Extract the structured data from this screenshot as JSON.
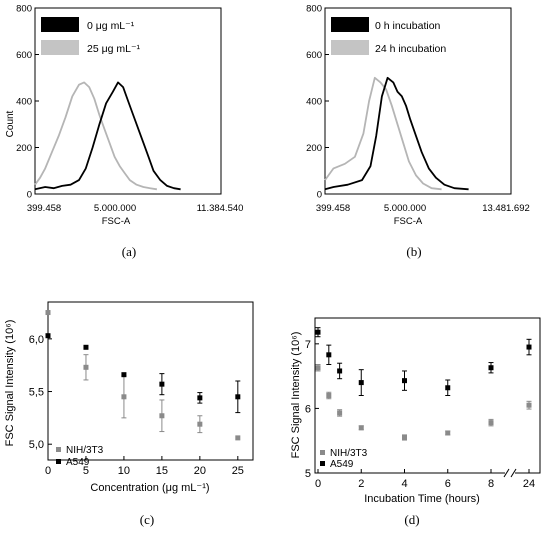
{
  "chart_data": [
    {
      "id": "a",
      "panel_label": "(a)",
      "type": "line",
      "xlabel": "FSC-A",
      "ylabel": "Count",
      "x_tick_labels": [
        "399.458",
        "5.000.000",
        "11.384.540"
      ],
      "xlim": [
        399458,
        11384540
      ],
      "ylim": [
        0,
        800
      ],
      "y_ticks": [
        0,
        200,
        400,
        600,
        800
      ],
      "legend_position": "top-left",
      "series": [
        {
          "name": "0 μg mL⁻¹",
          "color": "#000000",
          "x": [
            399458,
            1000000,
            1500000,
            2000000,
            2500000,
            3000000,
            3400000,
            3800000,
            4200000,
            4600000,
            5000000,
            5300000,
            5600000,
            5900000,
            6200000,
            6500000,
            6800000,
            7100000,
            7400000,
            7800000,
            8200000,
            8600000,
            9000000
          ],
          "y": [
            20,
            30,
            25,
            35,
            40,
            60,
            110,
            200,
            300,
            390,
            440,
            480,
            460,
            400,
            340,
            280,
            220,
            160,
            100,
            60,
            35,
            25,
            20
          ]
        },
        {
          "name": "25 μg mL⁻¹",
          "color": "#b5b5b5",
          "x": [
            399458,
            700000,
            1000000,
            1400000,
            1800000,
            2200000,
            2600000,
            3000000,
            3300000,
            3600000,
            3900000,
            4200000,
            4500000,
            4800000,
            5100000,
            5400000,
            5700000,
            6000000,
            6400000,
            6800000,
            7200000,
            7600000
          ],
          "y": [
            40,
            70,
            110,
            180,
            250,
            330,
            420,
            470,
            480,
            460,
            410,
            340,
            280,
            220,
            160,
            120,
            90,
            60,
            40,
            30,
            25,
            20
          ]
        }
      ]
    },
    {
      "id": "b",
      "panel_label": "(b)",
      "type": "line",
      "xlabel": "FSC-A",
      "ylabel": "",
      "x_tick_labels": [
        "399.458",
        "5.000.000",
        "13.481.692"
      ],
      "xlim": [
        399458,
        13481692
      ],
      "ylim": [
        0,
        800
      ],
      "y_ticks": [
        0,
        200,
        400,
        600,
        800
      ],
      "legend_position": "top-left",
      "series": [
        {
          "name": "0 h incubation",
          "color": "#000000",
          "x": [
            399458,
            1000000,
            2000000,
            3000000,
            3600000,
            4000000,
            4400000,
            4800000,
            5200000,
            5500000,
            5800000,
            6100000,
            6400000,
            6800000,
            7200000,
            7700000,
            8200000,
            8800000,
            9500000,
            10500000
          ],
          "y": [
            20,
            30,
            40,
            60,
            120,
            250,
            420,
            500,
            480,
            440,
            420,
            380,
            320,
            250,
            180,
            110,
            70,
            40,
            25,
            20
          ]
        },
        {
          "name": "24 h incubation",
          "color": "#b5b5b5",
          "x": [
            399458,
            1000000,
            1800000,
            2500000,
            3100000,
            3500000,
            3900000,
            4300000,
            4700000,
            5100000,
            5500000,
            5900000,
            6300000,
            6800000,
            7300000,
            7900000,
            8600000
          ],
          "y": [
            60,
            110,
            130,
            160,
            260,
            400,
            500,
            480,
            450,
            380,
            300,
            220,
            140,
            80,
            45,
            25,
            20
          ]
        }
      ]
    },
    {
      "id": "c",
      "panel_label": "(c)",
      "type": "scatter",
      "xlabel": "Concentration (μg mL⁻¹)",
      "ylabel": "FSC Signal Intensity (10⁶)",
      "xlim": [
        0,
        27
      ],
      "ylim": [
        4.85,
        6.35
      ],
      "x_ticks": [
        0,
        5,
        10,
        15,
        20,
        25
      ],
      "y_ticks": [
        5.0,
        5.5,
        6.0
      ],
      "y_tick_labels": [
        "5,0",
        "5,5",
        "6,0"
      ],
      "legend_position": "bottom-left",
      "series": [
        {
          "name": "NIH/3T3",
          "color": "#8a8a8a",
          "x": [
            0,
            5,
            10,
            15,
            20,
            25
          ],
          "y": [
            6.25,
            5.73,
            5.45,
            5.27,
            5.19,
            5.06
          ],
          "error": [
            0.0,
            0.12,
            0.2,
            0.15,
            0.08,
            0.0
          ]
        },
        {
          "name": "A549",
          "color": "#000000",
          "x": [
            0,
            5,
            10,
            15,
            20,
            25
          ],
          "y": [
            6.03,
            5.92,
            5.66,
            5.57,
            5.44,
            5.45
          ],
          "error": [
            0.0,
            0.0,
            0.0,
            0.1,
            0.05,
            0.15
          ]
        }
      ]
    },
    {
      "id": "d",
      "panel_label": "(d)",
      "type": "scatter",
      "xlabel": "Incubation Time (hours)",
      "ylabel": "FSC Signal Intensity (10⁶)",
      "x_axis_break": true,
      "x_ticks": [
        0,
        2,
        4,
        6,
        8,
        24
      ],
      "y_ticks": [
        5,
        6,
        7
      ],
      "ylim": [
        5,
        7.4
      ],
      "legend_position": "bottom-left",
      "series": [
        {
          "name": "NIH/3T3",
          "color": "#8a8a8a",
          "x": [
            0,
            0.5,
            1,
            2,
            4,
            6,
            8,
            24
          ],
          "y": [
            6.63,
            6.2,
            5.93,
            5.7,
            5.55,
            5.62,
            5.78,
            6.05
          ],
          "error": [
            0.05,
            0.05,
            0.05,
            0.03,
            0.04,
            0.03,
            0.05,
            0.06
          ]
        },
        {
          "name": "A549",
          "color": "#000000",
          "x": [
            0,
            0.5,
            1,
            2,
            4,
            6,
            8,
            24
          ],
          "y": [
            7.18,
            6.83,
            6.58,
            6.4,
            6.43,
            6.32,
            6.63,
            6.95
          ],
          "error": [
            0.07,
            0.15,
            0.12,
            0.2,
            0.15,
            0.12,
            0.08,
            0.12
          ]
        }
      ]
    }
  ]
}
